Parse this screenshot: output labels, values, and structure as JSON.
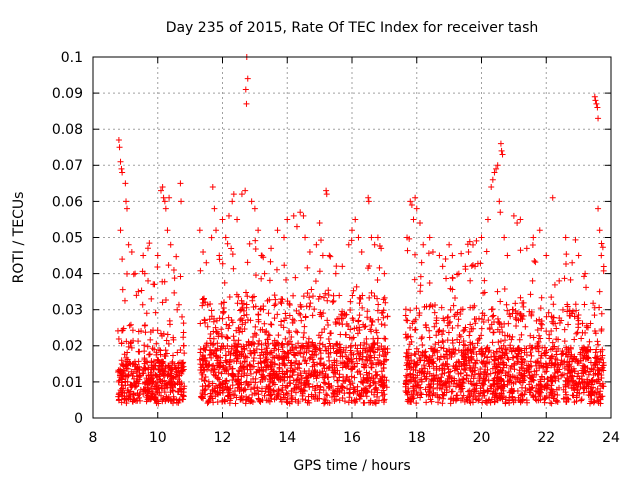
{
  "chart_data": {
    "type": "scatter",
    "title": "Day 235 of 2015, Rate Of TEC Index for receiver tash",
    "xlabel": "GPS time / hours",
    "ylabel": "ROTI / TECUs",
    "xlim": [
      8,
      24
    ],
    "ylim": [
      0,
      0.1
    ],
    "x_ticks": [
      "8",
      "10",
      "12",
      "14",
      "16",
      "18",
      "20",
      "22",
      "24"
    ],
    "y_ticks": [
      "0",
      "0.01",
      "0.02",
      "0.03",
      "0.04",
      "0.05",
      "0.06",
      "0.07",
      "0.08",
      "0.09",
      "0.1"
    ],
    "grid": true,
    "marker": "+",
    "color": "#ff0000",
    "series": [
      {
        "name": "ROTI",
        "points": [
          [
            8.8,
            0.077
          ],
          [
            8.82,
            0.075
          ],
          [
            8.85,
            0.071
          ],
          [
            8.88,
            0.069
          ],
          [
            8.9,
            0.068
          ],
          [
            9.0,
            0.065
          ],
          [
            9.02,
            0.06
          ],
          [
            8.85,
            0.052
          ],
          [
            8.9,
            0.044
          ],
          [
            9.05,
            0.058
          ],
          [
            9.1,
            0.048
          ],
          [
            9.2,
            0.046
          ],
          [
            9.3,
            0.04
          ],
          [
            9.4,
            0.035
          ],
          [
            9.55,
            0.045
          ],
          [
            9.6,
            0.04
          ],
          [
            9.7,
            0.038
          ],
          [
            9.8,
            0.033
          ],
          [
            9.9,
            0.037
          ],
          [
            10.0,
            0.045
          ],
          [
            10.1,
            0.063
          ],
          [
            10.15,
            0.064
          ],
          [
            10.18,
            0.061
          ],
          [
            10.22,
            0.06
          ],
          [
            10.25,
            0.058
          ],
          [
            10.3,
            0.052
          ],
          [
            10.35,
            0.061
          ],
          [
            10.4,
            0.048
          ],
          [
            10.5,
            0.041
          ],
          [
            10.6,
            0.03
          ],
          [
            10.7,
            0.065
          ],
          [
            10.72,
            0.06
          ],
          [
            10.75,
            0.028
          ],
          [
            10.8,
            0.02
          ],
          [
            11.3,
            0.052
          ],
          [
            11.4,
            0.046
          ],
          [
            11.5,
            0.043
          ],
          [
            11.7,
            0.064
          ],
          [
            11.75,
            0.058
          ],
          [
            11.8,
            0.052
          ],
          [
            11.9,
            0.045
          ],
          [
            12.0,
            0.055
          ],
          [
            12.1,
            0.05
          ],
          [
            12.2,
            0.056
          ],
          [
            12.3,
            0.06
          ],
          [
            12.35,
            0.062
          ],
          [
            12.45,
            0.055
          ],
          [
            12.6,
            0.062
          ],
          [
            12.7,
            0.063
          ],
          [
            12.75,
            0.1
          ],
          [
            12.78,
            0.094
          ],
          [
            12.72,
            0.091
          ],
          [
            12.74,
            0.087
          ],
          [
            12.9,
            0.06
          ],
          [
            13.0,
            0.058
          ],
          [
            13.1,
            0.052
          ],
          [
            13.2,
            0.045
          ],
          [
            13.3,
            0.04
          ],
          [
            13.5,
            0.047
          ],
          [
            13.7,
            0.052
          ],
          [
            13.9,
            0.05
          ],
          [
            14.0,
            0.055
          ],
          [
            14.2,
            0.056
          ],
          [
            14.3,
            0.053
          ],
          [
            14.4,
            0.057
          ],
          [
            14.5,
            0.056
          ],
          [
            14.55,
            0.05
          ],
          [
            14.7,
            0.046
          ],
          [
            14.9,
            0.048
          ],
          [
            15.0,
            0.054
          ],
          [
            15.1,
            0.045
          ],
          [
            15.2,
            0.063
          ],
          [
            15.22,
            0.062
          ],
          [
            15.3,
            0.045
          ],
          [
            15.5,
            0.04
          ],
          [
            15.7,
            0.042
          ],
          [
            15.9,
            0.048
          ],
          [
            16.0,
            0.052
          ],
          [
            16.1,
            0.055
          ],
          [
            16.2,
            0.05
          ],
          [
            16.3,
            0.046
          ],
          [
            16.5,
            0.061
          ],
          [
            16.52,
            0.06
          ],
          [
            16.6,
            0.05
          ],
          [
            16.7,
            0.048
          ],
          [
            16.8,
            0.05
          ],
          [
            16.9,
            0.047
          ],
          [
            17.0,
            0.04
          ],
          [
            17.7,
            0.05
          ],
          [
            17.8,
            0.06
          ],
          [
            17.85,
            0.059
          ],
          [
            17.9,
            0.055
          ],
          [
            17.95,
            0.061
          ],
          [
            18.0,
            0.058
          ],
          [
            18.1,
            0.054
          ],
          [
            18.2,
            0.048
          ],
          [
            18.4,
            0.05
          ],
          [
            18.5,
            0.046
          ],
          [
            18.7,
            0.045
          ],
          [
            18.8,
            0.042
          ],
          [
            19.0,
            0.048
          ],
          [
            19.1,
            0.045
          ],
          [
            19.3,
            0.04
          ],
          [
            19.5,
            0.042
          ],
          [
            19.6,
            0.046
          ],
          [
            19.8,
            0.042
          ],
          [
            20.0,
            0.05
          ],
          [
            20.2,
            0.055
          ],
          [
            20.3,
            0.064
          ],
          [
            20.35,
            0.066
          ],
          [
            20.4,
            0.068
          ],
          [
            20.45,
            0.069
          ],
          [
            20.5,
            0.07
          ],
          [
            20.6,
            0.076
          ],
          [
            20.62,
            0.074
          ],
          [
            20.65,
            0.073
          ],
          [
            20.55,
            0.06
          ],
          [
            20.58,
            0.057
          ],
          [
            20.7,
            0.05
          ],
          [
            20.8,
            0.045
          ],
          [
            21.0,
            0.056
          ],
          [
            21.1,
            0.054
          ],
          [
            21.2,
            0.055
          ],
          [
            21.4,
            0.047
          ],
          [
            21.6,
            0.05
          ],
          [
            21.8,
            0.052
          ],
          [
            22.0,
            0.045
          ],
          [
            22.2,
            0.061
          ],
          [
            22.4,
            0.038
          ],
          [
            22.6,
            0.05
          ],
          [
            22.8,
            0.043
          ],
          [
            23.0,
            0.045
          ],
          [
            23.2,
            0.04
          ],
          [
            23.5,
            0.089
          ],
          [
            23.52,
            0.088
          ],
          [
            23.55,
            0.087
          ],
          [
            23.58,
            0.086
          ],
          [
            23.6,
            0.083
          ],
          [
            23.6,
            0.058
          ],
          [
            23.65,
            0.052
          ],
          [
            23.7,
            0.045
          ],
          [
            23.65,
            0.035
          ]
        ]
      }
    ],
    "density_segments": [
      {
        "x_start": 8.75,
        "x_end": 10.82,
        "base_max": 0.022,
        "peak": 0.05
      },
      {
        "x_start": 11.3,
        "x_end": 17.1,
        "base_max": 0.03,
        "peak": 0.05
      },
      {
        "x_start": 17.65,
        "x_end": 23.78,
        "base_max": 0.028,
        "peak": 0.05
      }
    ]
  }
}
